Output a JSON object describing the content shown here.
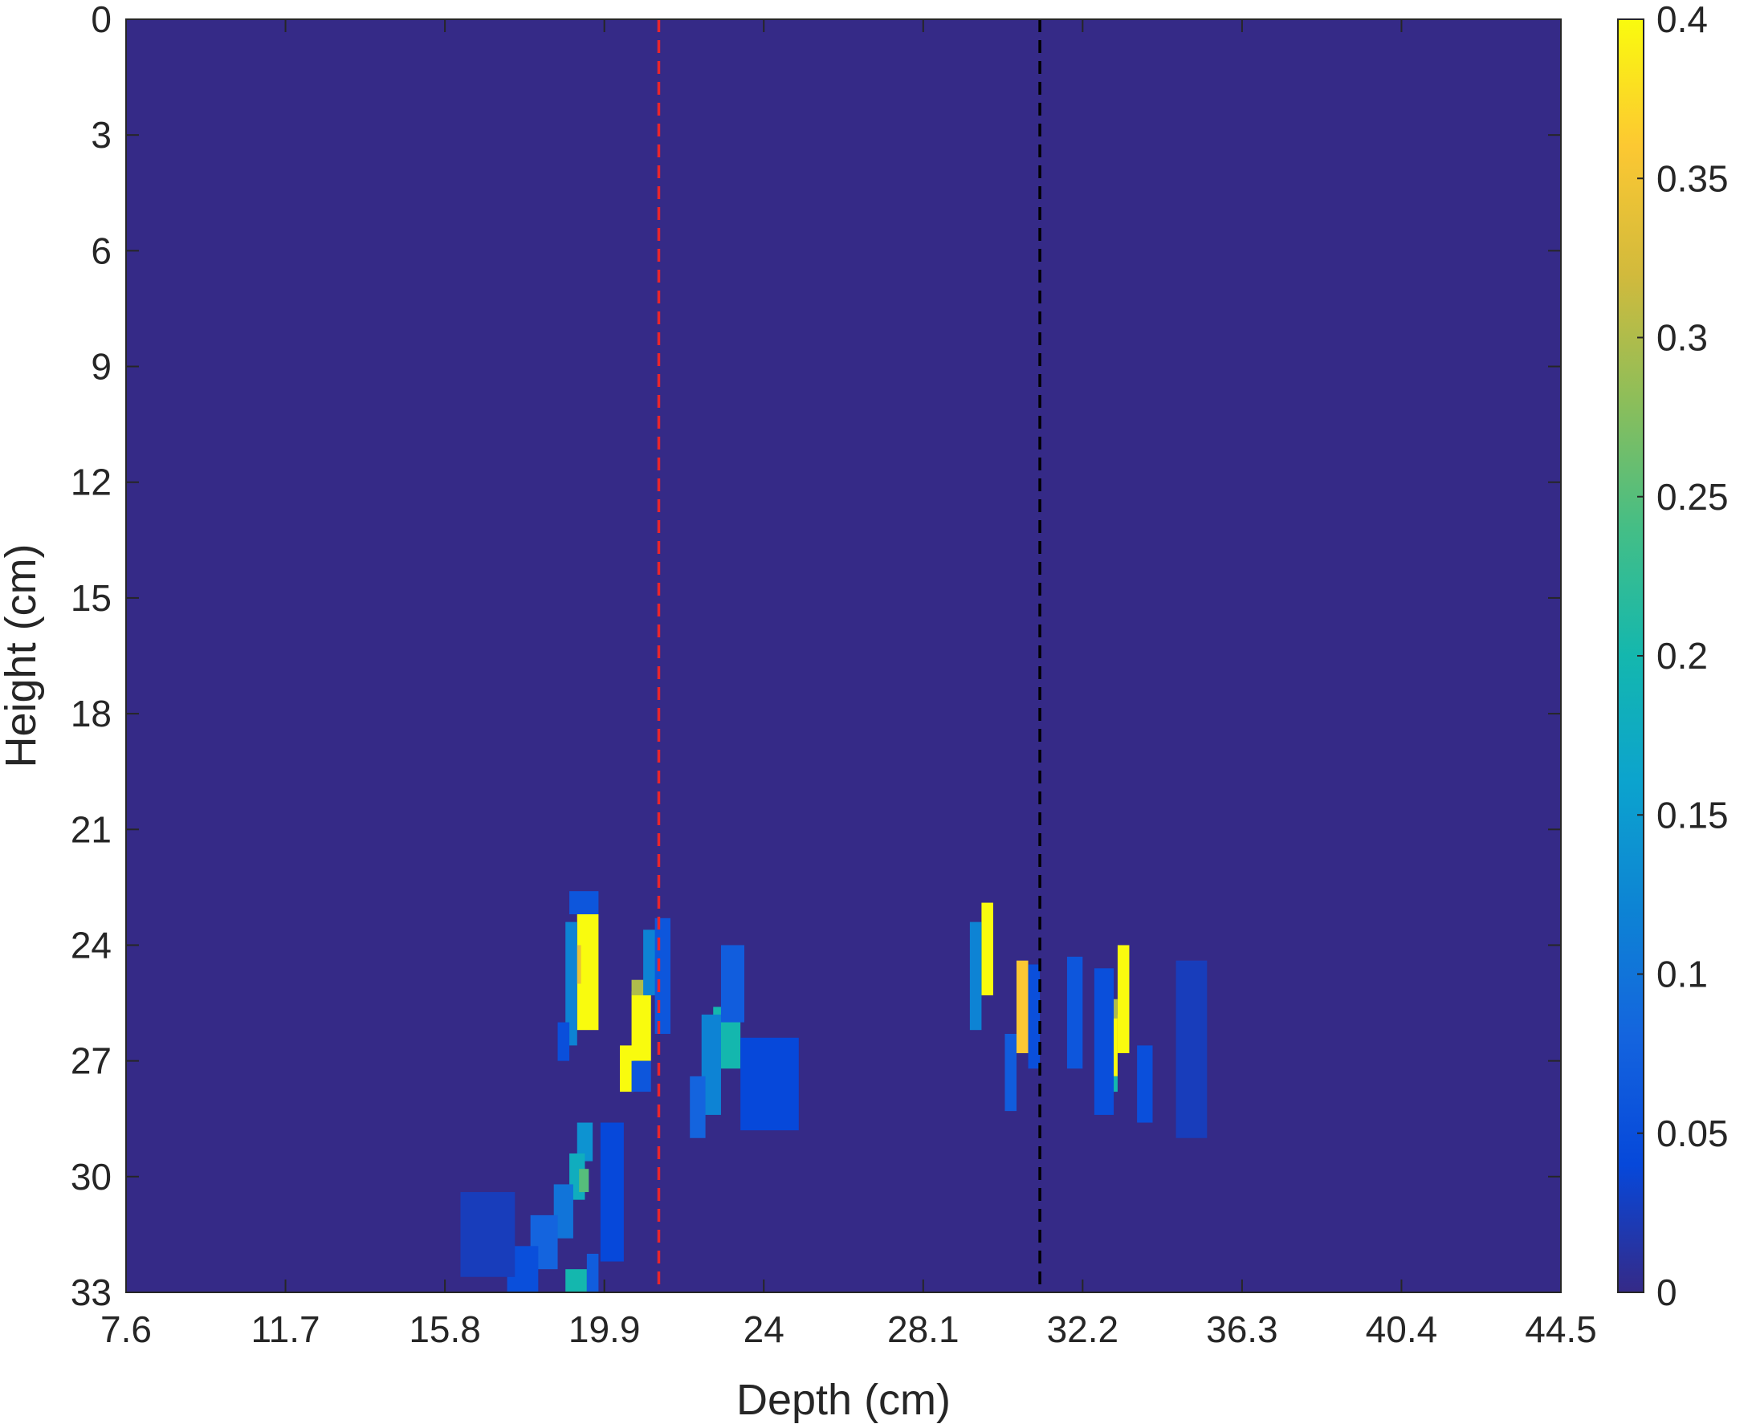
{
  "chart_data": {
    "type": "heatmap",
    "title": "",
    "xlabel": "Depth (cm)",
    "ylabel": "Height (cm)",
    "xlim": [
      7.6,
      44.5
    ],
    "ylim": [
      33,
      0
    ],
    "y_direction": "down",
    "xticks": [
      7.6,
      11.7,
      15.8,
      19.9,
      24,
      28.1,
      32.2,
      36.3,
      40.4,
      44.5
    ],
    "xtick_labels": [
      "7.6",
      "11.7",
      "15.8",
      "19.9",
      "24",
      "28.1",
      "32.2",
      "36.3",
      "40.4",
      "44.5"
    ],
    "yticks": [
      0,
      3,
      6,
      9,
      12,
      15,
      18,
      21,
      24,
      27,
      30,
      33
    ],
    "ytick_labels": [
      "0",
      "3",
      "6",
      "9",
      "12",
      "15",
      "18",
      "21",
      "24",
      "27",
      "30",
      "33"
    ],
    "grid": false,
    "colormap": "parula",
    "colorbar": {
      "range": [
        0,
        0.4
      ],
      "ticks": [
        0,
        0.05,
        0.1,
        0.15,
        0.2,
        0.25,
        0.3,
        0.35,
        0.4
      ],
      "tick_labels": [
        "0",
        "0.05",
        "0.1",
        "0.15",
        "0.2",
        "0.25",
        "0.3",
        "0.35",
        "0.4"
      ]
    },
    "background_value": 0,
    "cell_size": {
      "depth": 0.547,
      "height": 0.3
    },
    "reference_lines": [
      {
        "orientation": "vertical",
        "x": 21.3,
        "style": "dashed",
        "color": "#e8262d"
      },
      {
        "orientation": "vertical",
        "x": 31.1,
        "style": "dashed",
        "color": "#000000"
      }
    ],
    "hotspots": [
      {
        "x_range": [
          19.2,
          19.75
        ],
        "y_range": [
          23.2,
          26.2
        ],
        "value": 0.4
      },
      {
        "x_range": [
          19.0,
          19.3
        ],
        "y_range": [
          24.0,
          25.0
        ],
        "value": 0.34
      },
      {
        "x_range": [
          18.9,
          19.2
        ],
        "y_range": [
          23.4,
          26.6
        ],
        "value": 0.12
      },
      {
        "x_range": [
          19.0,
          19.75
        ],
        "y_range": [
          22.6,
          23.2
        ],
        "value": 0.06
      },
      {
        "x_range": [
          18.7,
          19.0
        ],
        "y_range": [
          26.0,
          27.0
        ],
        "value": 0.05
      },
      {
        "x_range": [
          20.6,
          21.1
        ],
        "y_range": [
          25.2,
          27.0
        ],
        "value": 0.4
      },
      {
        "x_range": [
          20.3,
          20.65
        ],
        "y_range": [
          26.6,
          27.8
        ],
        "value": 0.4
      },
      {
        "x_range": [
          20.6,
          21.1
        ],
        "y_range": [
          24.9,
          25.3
        ],
        "value": 0.3
      },
      {
        "x_range": [
          20.9,
          21.5
        ],
        "y_range": [
          23.6,
          25.3
        ],
        "value": 0.12
      },
      {
        "x_range": [
          21.2,
          21.6
        ],
        "y_range": [
          23.3,
          26.3
        ],
        "value": 0.06
      },
      {
        "x_range": [
          20.6,
          21.1
        ],
        "y_range": [
          27.0,
          27.8
        ],
        "value": 0.06
      },
      {
        "x_range": [
          22.7,
          23.4
        ],
        "y_range": [
          25.6,
          27.2
        ],
        "value": 0.2
      },
      {
        "x_range": [
          22.4,
          22.9
        ],
        "y_range": [
          25.8,
          28.4
        ],
        "value": 0.12
      },
      {
        "x_range": [
          22.9,
          23.5
        ],
        "y_range": [
          24.0,
          26.0
        ],
        "value": 0.07
      },
      {
        "x_range": [
          22.1,
          22.5
        ],
        "y_range": [
          27.4,
          29.0
        ],
        "value": 0.08
      },
      {
        "x_range": [
          23.4,
          24.9
        ],
        "y_range": [
          26.4,
          28.8
        ],
        "value": 0.04
      },
      {
        "x_range": [
          19.2,
          19.6
        ],
        "y_range": [
          28.6,
          29.6
        ],
        "value": 0.14
      },
      {
        "x_range": [
          19.0,
          19.4
        ],
        "y_range": [
          29.4,
          30.6
        ],
        "value": 0.18
      },
      {
        "x_range": [
          19.25,
          19.5
        ],
        "y_range": [
          29.8,
          30.4
        ],
        "value": 0.25
      },
      {
        "x_range": [
          18.6,
          19.1
        ],
        "y_range": [
          30.2,
          31.6
        ],
        "value": 0.1
      },
      {
        "x_range": [
          18.0,
          18.7
        ],
        "y_range": [
          31.0,
          32.4
        ],
        "value": 0.08
      },
      {
        "x_range": [
          17.4,
          18.2
        ],
        "y_range": [
          31.8,
          33.0
        ],
        "value": 0.05
      },
      {
        "x_range": [
          18.9,
          19.45
        ],
        "y_range": [
          32.4,
          33.0
        ],
        "value": 0.2
      },
      {
        "x_range": [
          19.45,
          19.75
        ],
        "y_range": [
          32.0,
          33.0
        ],
        "value": 0.07
      },
      {
        "x_range": [
          19.8,
          20.4
        ],
        "y_range": [
          28.6,
          32.2
        ],
        "value": 0.04
      },
      {
        "x_range": [
          16.2,
          17.6
        ],
        "y_range": [
          30.4,
          32.6
        ],
        "value": 0.025
      },
      {
        "x_range": [
          29.6,
          29.9
        ],
        "y_range": [
          22.9,
          25.3
        ],
        "value": 0.4
      },
      {
        "x_range": [
          29.3,
          29.6
        ],
        "y_range": [
          23.4,
          26.2
        ],
        "value": 0.12
      },
      {
        "x_range": [
          30.5,
          30.8
        ],
        "y_range": [
          24.4,
          26.8
        ],
        "value": 0.36
      },
      {
        "x_range": [
          30.2,
          30.5
        ],
        "y_range": [
          26.3,
          28.3
        ],
        "value": 0.07
      },
      {
        "x_range": [
          30.8,
          31.1
        ],
        "y_range": [
          24.5,
          27.2
        ],
        "value": 0.05
      },
      {
        "x_range": [
          33.1,
          33.4
        ],
        "y_range": [
          24.0,
          26.8
        ],
        "value": 0.4
      },
      {
        "x_range": [
          32.8,
          33.1
        ],
        "y_range": [
          25.8,
          27.4
        ],
        "value": 0.4
      },
      {
        "x_range": [
          32.8,
          33.1
        ],
        "y_range": [
          25.4,
          25.9
        ],
        "value": 0.3
      },
      {
        "x_range": [
          32.8,
          33.1
        ],
        "y_range": [
          27.4,
          27.8
        ],
        "value": 0.2
      },
      {
        "x_range": [
          32.5,
          33.0
        ],
        "y_range": [
          24.6,
          28.4
        ],
        "value": 0.05
      },
      {
        "x_range": [
          31.8,
          32.2
        ],
        "y_range": [
          24.3,
          27.2
        ],
        "value": 0.06
      },
      {
        "x_range": [
          33.6,
          34.0
        ],
        "y_range": [
          26.6,
          28.6
        ],
        "value": 0.05
      },
      {
        "x_range": [
          34.6,
          35.4
        ],
        "y_range": [
          24.4,
          29.0
        ],
        "value": 0.025
      }
    ]
  }
}
